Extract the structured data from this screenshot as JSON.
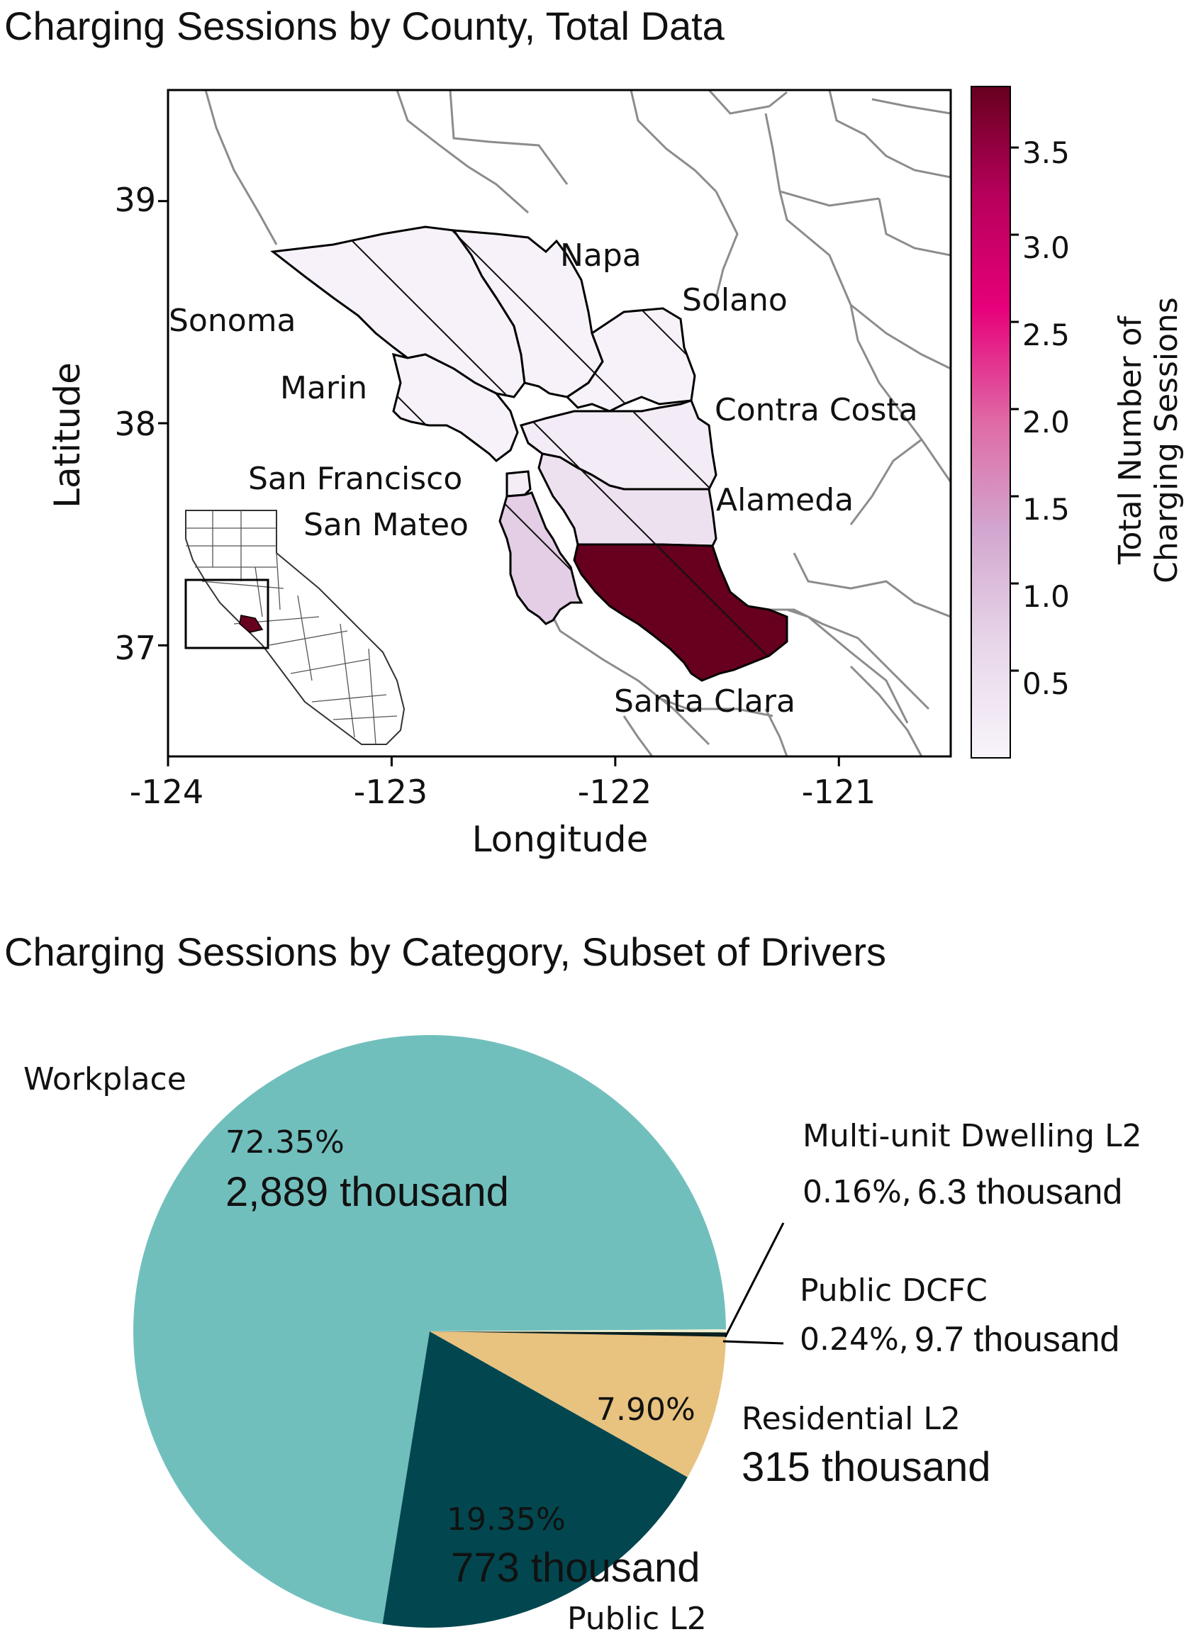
{
  "map_title": "Charging Sessions by County, Total Data",
  "pie_title": "Charging Sessions by Category, Subset of Drivers",
  "colors": {
    "colormap": [
      "#f8f4fa",
      "#e7d6e9",
      "#d2a6cf",
      "#df6aa6",
      "#e7007a",
      "#b6005a",
      "#67001f"
    ],
    "workplace": "#71bfbd",
    "public_l2": "#02474f",
    "residential": "#e8c27f",
    "dcfc": "#0b1f1d",
    "mud": "#f0efcf",
    "county_border": "#8c8c8c"
  },
  "chart_data": [
    {
      "type": "choropleth",
      "title": "Charging Sessions by County, Total Data",
      "xlabel": "Longitude",
      "ylabel": "Latitude",
      "xlim": [
        -124,
        -120.5
      ],
      "ylim": [
        36.5,
        39.5
      ],
      "xticks": [
        "-124",
        "-123",
        "-122",
        "-121"
      ],
      "yticks": [
        "39",
        "38",
        "37"
      ],
      "colorbar": {
        "label": "Total Number of Charging Sessions",
        "min": 0,
        "max": 3.85,
        "ticks": [
          "0.5",
          "1.0",
          "1.5",
          "2.0",
          "2.5",
          "3.0",
          "3.5"
        ]
      },
      "counties": [
        {
          "name": "Sonoma",
          "value": 0.05
        },
        {
          "name": "Napa",
          "value": 0.05
        },
        {
          "name": "Solano",
          "value": 0.05
        },
        {
          "name": "Marin",
          "value": 0.05
        },
        {
          "name": "Contra Costa",
          "value": 0.2
        },
        {
          "name": "San Francisco",
          "value": 0.15
        },
        {
          "name": "San Mateo",
          "value": 0.75
        },
        {
          "name": "Alameda",
          "value": 0.4
        },
        {
          "name": "Santa Clara",
          "value": 3.85
        }
      ]
    },
    {
      "type": "pie",
      "title": "Charging Sessions by Category, Subset of Drivers",
      "slices": [
        {
          "name": "Workplace",
          "percent": 72.35,
          "pct_label": "72.35%",
          "value_label": "2,889 thousand"
        },
        {
          "name": "Public L2",
          "percent": 19.35,
          "pct_label": "19.35%",
          "value_label": "773 thousand"
        },
        {
          "name": "Residential L2",
          "percent": 7.9,
          "pct_label": "7.90%",
          "value_label": "315 thousand"
        },
        {
          "name": "Public DCFC",
          "percent": 0.24,
          "pct_label": "0.24%,",
          "value_label": "9.7 thousand"
        },
        {
          "name": "Multi-unit Dwelling L2",
          "percent": 0.16,
          "pct_label": "0.16%,",
          "value_label": "6.3 thousand"
        }
      ]
    }
  ]
}
